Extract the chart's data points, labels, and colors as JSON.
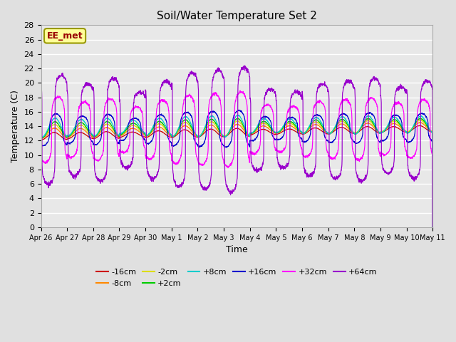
{
  "title": "Soil/Water Temperature Set 2",
  "xlabel": "Time",
  "ylabel": "Temperature (C)",
  "ylim": [
    0,
    28
  ],
  "yticks": [
    0,
    2,
    4,
    6,
    8,
    10,
    12,
    14,
    16,
    18,
    20,
    22,
    24,
    26,
    28
  ],
  "bg_color": "#e0e0e0",
  "plot_bg_color": "#e8e8e8",
  "grid_color": "white",
  "series": [
    {
      "label": "-16cm",
      "color": "#cc0000",
      "amplitude": 0.5,
      "base": 12.6,
      "trend": 0.07,
      "phase": 0.0,
      "peak_sharpness": 1
    },
    {
      "label": "-8cm",
      "color": "#ff8800",
      "amplitude": 0.7,
      "base": 13.0,
      "trend": 0.06,
      "phase": 0.1,
      "peak_sharpness": 1
    },
    {
      "label": "-2cm",
      "color": "#dddd00",
      "amplitude": 0.9,
      "base": 13.3,
      "trend": 0.05,
      "phase": 0.15,
      "peak_sharpness": 1
    },
    {
      "label": "+2cm",
      "color": "#00cc00",
      "amplitude": 1.1,
      "base": 13.5,
      "trend": 0.04,
      "phase": 0.2,
      "peak_sharpness": 1
    },
    {
      "label": "+8cm",
      "color": "#00cccc",
      "amplitude": 1.3,
      "base": 13.8,
      "trend": 0.03,
      "phase": 0.25,
      "peak_sharpness": 1
    },
    {
      "label": "+16cm",
      "color": "#0000cc",
      "amplitude": 2.2,
      "base": 13.5,
      "trend": 0.02,
      "phase": 0.5,
      "peak_sharpness": 3
    },
    {
      "label": "+32cm",
      "color": "#ff00ff",
      "amplitude": 4.5,
      "base": 13.5,
      "trend": 0.01,
      "phase": 1.0,
      "peak_sharpness": 5
    },
    {
      "label": "+64cm",
      "color": "#9900cc",
      "amplitude": 7.5,
      "base": 13.5,
      "trend": 0.0,
      "phase": 1.8,
      "peak_sharpness": 8
    }
  ],
  "xtick_labels": [
    "Apr 26",
    "Apr 27",
    "Apr 28",
    "Apr 29",
    "Apr 30",
    "May 1",
    "May 2",
    "May 3",
    "May 4",
    "May 5",
    "May 6",
    "May 7",
    "May 8",
    "May 9",
    "May 10",
    "May 11"
  ],
  "n_days": 15,
  "points_per_day": 144,
  "annotation_text": "EE_met",
  "annotation_color": "#990000",
  "annotation_bg": "#ffff99",
  "annotation_border": "#999900",
  "figsize": [
    6.4,
    4.8
  ],
  "dpi": 100
}
